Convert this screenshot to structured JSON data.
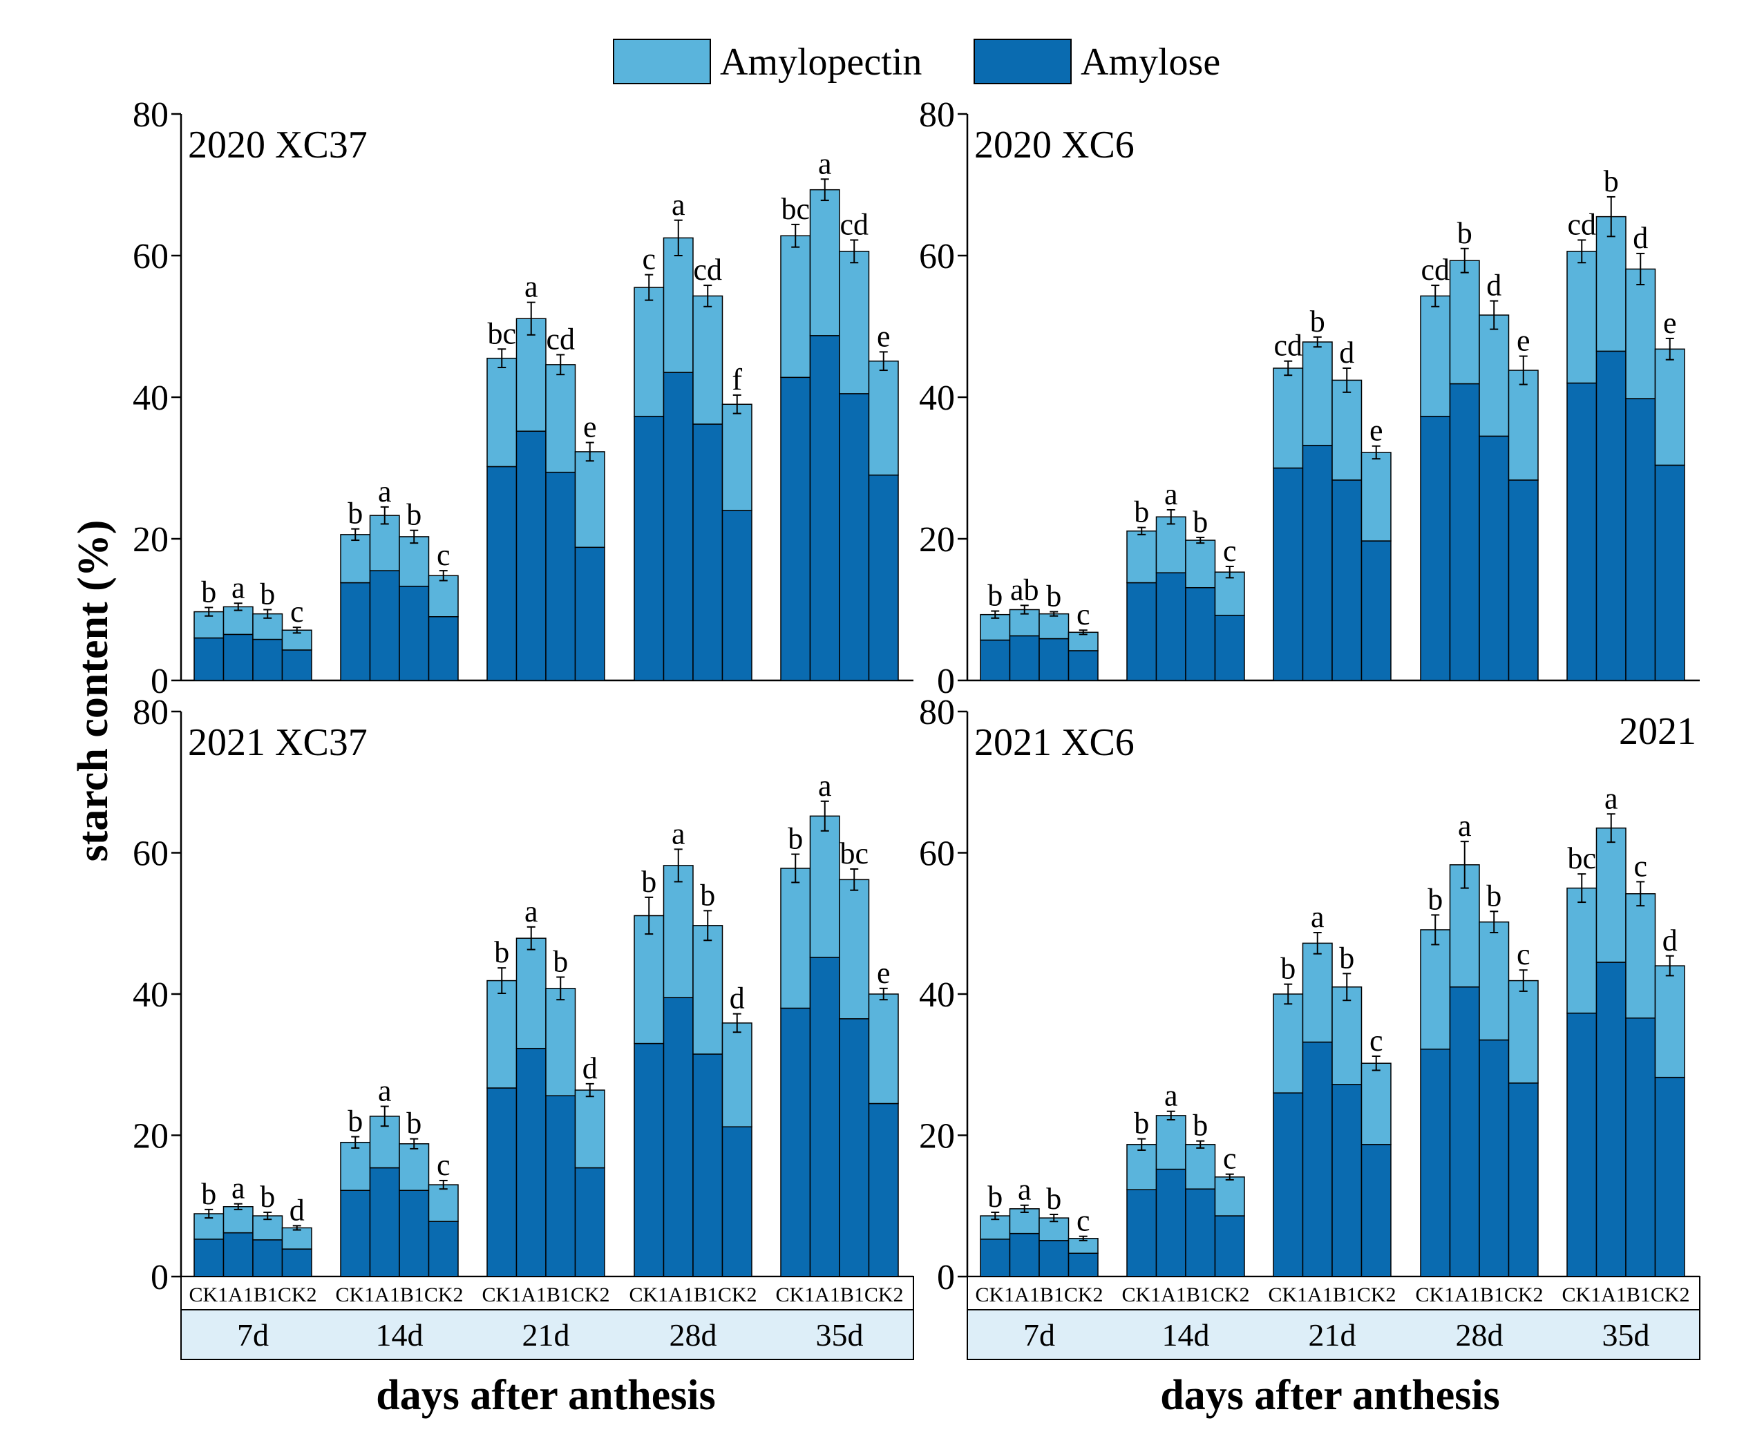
{
  "figure": {
    "ylabel": "starch content (%)",
    "xlabel": "days after anthesis",
    "legend": [
      {
        "name": "Amylopectin",
        "color": "#5AB4DC"
      },
      {
        "name": "Amylose",
        "color": "#0A6BB0"
      }
    ],
    "axis_color": "#000000",
    "band_color": "#DDEEF8"
  },
  "chart_data": [
    {
      "type": "bar",
      "stacked": true,
      "title": "2020  XC37",
      "groups": [
        "7d",
        "14d",
        "21d",
        "28d",
        "35d"
      ],
      "treatments": [
        "CK1",
        "A1",
        "B1",
        "CK2"
      ],
      "ylim": [
        0,
        80
      ],
      "yticks": [
        0,
        20,
        40,
        60,
        80
      ],
      "series": [
        {
          "name": "Amylose",
          "values": [
            [
              6.0,
              6.5,
              5.8,
              4.3
            ],
            [
              13.8,
              15.5,
              13.3,
              9.0
            ],
            [
              30.2,
              35.2,
              29.4,
              18.8
            ],
            [
              37.3,
              43.5,
              36.2,
              24.0
            ],
            [
              42.8,
              48.7,
              40.5,
              29.0
            ]
          ]
        },
        {
          "name": "Amylopectin",
          "values": [
            [
              3.7,
              3.9,
              3.6,
              2.8
            ],
            [
              6.8,
              7.8,
              7.0,
              5.8
            ],
            [
              15.3,
              15.9,
              15.2,
              13.5
            ],
            [
              18.2,
              19.0,
              18.1,
              15.0
            ],
            [
              20.0,
              20.6,
              20.1,
              16.1
            ]
          ]
        }
      ],
      "totals": [
        [
          9.7,
          10.4,
          9.4,
          7.1
        ],
        [
          20.6,
          23.3,
          20.3,
          14.8
        ],
        [
          45.5,
          51.1,
          44.6,
          32.3
        ],
        [
          55.5,
          62.5,
          54.3,
          39.0
        ],
        [
          62.8,
          69.3,
          60.6,
          45.1
        ]
      ],
      "errors": [
        [
          0.6,
          0.5,
          0.6,
          0.4
        ],
        [
          0.8,
          1.2,
          0.9,
          0.7
        ],
        [
          1.3,
          2.3,
          1.4,
          1.3
        ],
        [
          1.8,
          2.5,
          1.5,
          1.3
        ],
        [
          1.6,
          1.5,
          1.6,
          1.3
        ]
      ],
      "letters": [
        [
          "b",
          "a",
          "b",
          "c"
        ],
        [
          "b",
          "a",
          "b",
          "c"
        ],
        [
          "bc",
          "a",
          "cd",
          "e"
        ],
        [
          "c",
          "a",
          "cd",
          "f"
        ],
        [
          "bc",
          "a",
          "cd",
          "e"
        ]
      ]
    },
    {
      "type": "bar",
      "stacked": true,
      "title": "2020  XC6",
      "groups": [
        "7d",
        "14d",
        "21d",
        "28d",
        "35d"
      ],
      "treatments": [
        "CK1",
        "A1",
        "B1",
        "CK2"
      ],
      "ylim": [
        0,
        80
      ],
      "yticks": [
        0,
        20,
        40,
        60,
        80
      ],
      "series": [
        {
          "name": "Amylose",
          "values": [
            [
              5.7,
              6.3,
              5.9,
              4.2
            ],
            [
              13.8,
              15.2,
              13.1,
              9.2
            ],
            [
              30.0,
              33.2,
              28.3,
              19.7
            ],
            [
              37.3,
              41.9,
              34.5,
              28.3
            ],
            [
              42.0,
              46.5,
              39.8,
              30.4
            ]
          ]
        },
        {
          "name": "Amylopectin",
          "values": [
            [
              3.6,
              3.7,
              3.5,
              2.6
            ],
            [
              7.3,
              7.9,
              6.7,
              6.1
            ],
            [
              14.1,
              14.6,
              14.1,
              12.5
            ],
            [
              17.0,
              17.4,
              17.1,
              15.5
            ],
            [
              18.6,
              19.0,
              18.3,
              16.4
            ]
          ]
        }
      ],
      "totals": [
        [
          9.3,
          10.0,
          9.4,
          6.8
        ],
        [
          21.1,
          23.1,
          19.8,
          15.3
        ],
        [
          44.1,
          47.8,
          42.4,
          32.2
        ],
        [
          54.3,
          59.3,
          51.6,
          43.8
        ],
        [
          60.6,
          65.5,
          58.1,
          46.8
        ]
      ],
      "errors": [
        [
          0.5,
          0.6,
          0.3,
          0.3
        ],
        [
          0.5,
          1.0,
          0.4,
          0.8
        ],
        [
          1.0,
          0.7,
          1.7,
          0.9
        ],
        [
          1.5,
          1.7,
          2.0,
          2.0
        ],
        [
          1.6,
          2.8,
          2.2,
          1.5
        ]
      ],
      "letters": [
        [
          "b",
          "ab",
          "b",
          "c"
        ],
        [
          "b",
          "a",
          "b",
          "c"
        ],
        [
          "cd",
          "b",
          "d",
          "e"
        ],
        [
          "cd",
          "b",
          "d",
          "e"
        ],
        [
          "cd",
          "b",
          "d",
          "e"
        ]
      ]
    },
    {
      "type": "bar",
      "stacked": true,
      "title": "2021  XC37",
      "groups": [
        "7d",
        "14d",
        "21d",
        "28d",
        "35d"
      ],
      "treatments": [
        "CK1",
        "A1",
        "B1",
        "CK2"
      ],
      "ylim": [
        0,
        80
      ],
      "yticks": [
        0,
        20,
        40,
        60,
        80
      ],
      "series": [
        {
          "name": "Amylose",
          "values": [
            [
              5.3,
              6.2,
              5.2,
              3.9
            ],
            [
              12.2,
              15.4,
              12.2,
              7.8
            ],
            [
              26.7,
              32.3,
              25.6,
              15.4
            ],
            [
              33.0,
              39.5,
              31.5,
              21.2
            ],
            [
              38.0,
              45.2,
              36.5,
              24.5
            ]
          ]
        },
        {
          "name": "Amylopectin",
          "values": [
            [
              3.6,
              3.7,
              3.4,
              3.0
            ],
            [
              6.8,
              7.3,
              6.6,
              5.2
            ],
            [
              15.2,
              15.6,
              15.2,
              11.0
            ],
            [
              18.1,
              18.7,
              18.2,
              14.7
            ],
            [
              19.8,
              20.0,
              19.7,
              15.5
            ]
          ]
        }
      ],
      "totals": [
        [
          8.9,
          9.9,
          8.6,
          6.9
        ],
        [
          19.0,
          22.7,
          18.8,
          13.0
        ],
        [
          41.9,
          47.9,
          40.8,
          26.4
        ],
        [
          51.1,
          58.2,
          49.7,
          35.9
        ],
        [
          57.8,
          65.2,
          56.2,
          40.0
        ]
      ],
      "errors": [
        [
          0.6,
          0.4,
          0.5,
          0.3
        ],
        [
          0.8,
          1.4,
          0.7,
          0.6
        ],
        [
          1.8,
          1.6,
          1.6,
          0.9
        ],
        [
          2.6,
          2.3,
          2.1,
          1.3
        ],
        [
          2.0,
          2.1,
          1.5,
          0.8
        ]
      ],
      "letters": [
        [
          "b",
          "a",
          "b",
          "d"
        ],
        [
          "b",
          "a",
          "b",
          "c"
        ],
        [
          "b",
          "a",
          "b",
          "d"
        ],
        [
          "b",
          "a",
          "b",
          "d"
        ],
        [
          "b",
          "a",
          "bc",
          "e"
        ]
      ]
    },
    {
      "type": "bar",
      "stacked": true,
      "title": "2021  XC6",
      "corner_label": "2021",
      "groups": [
        "7d",
        "14d",
        "21d",
        "28d",
        "35d"
      ],
      "treatments": [
        "CK1",
        "A1",
        "B1",
        "CK2"
      ],
      "ylim": [
        0,
        80
      ],
      "yticks": [
        0,
        20,
        40,
        60,
        80
      ],
      "series": [
        {
          "name": "Amylose",
          "values": [
            [
              5.3,
              6.1,
              5.1,
              3.3
            ],
            [
              12.3,
              15.2,
              12.4,
              8.6
            ],
            [
              26.0,
              33.2,
              27.2,
              18.7
            ],
            [
              32.2,
              41.0,
              33.5,
              27.4
            ],
            [
              37.3,
              44.5,
              36.6,
              28.2
            ]
          ]
        },
        {
          "name": "Amylopectin",
          "values": [
            [
              3.3,
              3.5,
              3.2,
              2.1
            ],
            [
              6.4,
              7.6,
              6.3,
              5.5
            ],
            [
              14.0,
              14.0,
              13.8,
              11.5
            ],
            [
              16.9,
              17.3,
              16.7,
              14.5
            ],
            [
              17.7,
              19.0,
              17.6,
              15.8
            ]
          ]
        }
      ],
      "totals": [
        [
          8.6,
          9.6,
          8.3,
          5.4
        ],
        [
          18.7,
          22.8,
          18.7,
          14.1
        ],
        [
          40.0,
          47.2,
          41.0,
          30.2
        ],
        [
          49.1,
          58.3,
          50.2,
          41.9
        ],
        [
          55.0,
          63.5,
          54.2,
          44.0
        ]
      ],
      "errors": [
        [
          0.5,
          0.5,
          0.5,
          0.3
        ],
        [
          0.8,
          0.6,
          0.5,
          0.4
        ],
        [
          1.4,
          1.5,
          1.9,
          1.0
        ],
        [
          2.1,
          3.3,
          1.5,
          1.5
        ],
        [
          2.0,
          2.0,
          1.7,
          1.4
        ]
      ],
      "letters": [
        [
          "b",
          "a",
          "b",
          "c"
        ],
        [
          "b",
          "a",
          "b",
          "c"
        ],
        [
          "b",
          "a",
          "b",
          "c"
        ],
        [
          "b",
          "a",
          "b",
          "c"
        ],
        [
          "bc",
          "a",
          "c",
          "d"
        ]
      ]
    }
  ]
}
